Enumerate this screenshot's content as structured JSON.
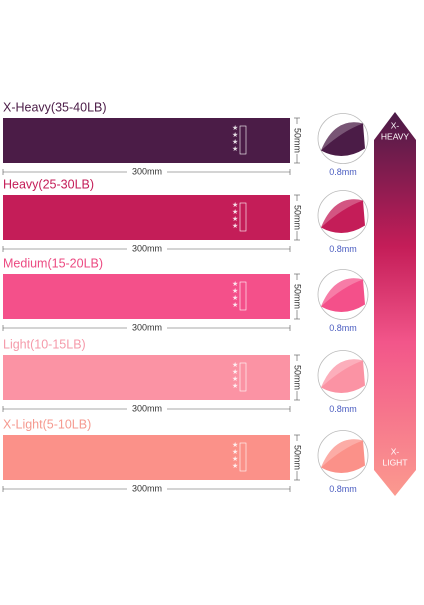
{
  "bands": [
    {
      "label": "X-Heavy(35-40LB)",
      "length": "300mm",
      "width": "50mm",
      "thickness": "0.8mm"
    },
    {
      "label": "Heavy(25-30LB)",
      "length": "300mm",
      "width": "50mm",
      "thickness": "0.8mm"
    },
    {
      "label": "Medium(15-20LB)",
      "length": "300mm",
      "width": "50mm",
      "thickness": "0.8mm"
    },
    {
      "label": "Light(10-15LB)",
      "length": "300mm",
      "width": "50mm",
      "thickness": "0.8mm"
    },
    {
      "label": "X-Light(5-10LB)",
      "length": "300mm",
      "width": "50mm",
      "thickness": "0.8mm"
    }
  ],
  "arrow": {
    "top": [
      "X-",
      "HEAVY"
    ],
    "bottom": [
      "X-",
      "LIGHT"
    ]
  }
}
